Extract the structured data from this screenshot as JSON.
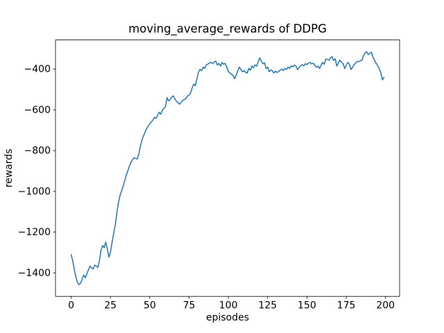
{
  "figure": {
    "background": "#ffffff"
  },
  "chart_data": {
    "type": "line",
    "title": "moving_average_rewards of DDPG",
    "xlabel": "episodes",
    "ylabel": "rewards",
    "series_name": "moving_average_rewards",
    "line_color": "#1f77b4",
    "line_width": 1.5,
    "grid": false,
    "legend": "none",
    "xlim": [
      -9.95,
      208.95
    ],
    "ylim": [
      -1515.2,
      -256.8
    ],
    "x_ticks": [
      0,
      25,
      50,
      75,
      100,
      125,
      150,
      175,
      200
    ],
    "x_tick_labels": [
      "0",
      "25",
      "50",
      "75",
      "100",
      "125",
      "150",
      "175",
      "200"
    ],
    "y_ticks": [
      -400,
      -600,
      -800,
      -1000,
      -1200,
      -1400
    ],
    "y_tick_labels": [
      "−400",
      "−600",
      "−800",
      "−1000",
      "−1200",
      "−1400"
    ],
    "x": "episodes 0..199 (implicit integer index)",
    "values": [
      -1310,
      -1340,
      -1383,
      -1420,
      -1446,
      -1458,
      -1450,
      -1432,
      -1410,
      -1424,
      -1405,
      -1385,
      -1367,
      -1375,
      -1381,
      -1362,
      -1366,
      -1373,
      -1340,
      -1290,
      -1266,
      -1276,
      -1249,
      -1282,
      -1322,
      -1298,
      -1252,
      -1209,
      -1168,
      -1110,
      -1060,
      -1022,
      -1000,
      -976,
      -950,
      -922,
      -900,
      -878,
      -858,
      -845,
      -835,
      -838,
      -841,
      -820,
      -780,
      -748,
      -728,
      -710,
      -692,
      -680,
      -668,
      -660,
      -650,
      -636,
      -642,
      -627,
      -612,
      -621,
      -601,
      -593,
      -585,
      -540,
      -556,
      -548,
      -538,
      -531,
      -546,
      -558,
      -564,
      -572,
      -563,
      -553,
      -549,
      -544,
      -532,
      -527,
      -517,
      -492,
      -473,
      -481,
      -447,
      -415,
      -401,
      -408,
      -390,
      -396,
      -379,
      -375,
      -370,
      -367,
      -373,
      -365,
      -361,
      -380,
      -372,
      -385,
      -367,
      -376,
      -372,
      -391,
      -412,
      -418,
      -426,
      -430,
      -447,
      -430,
      -407,
      -390,
      -401,
      -413,
      -407,
      -416,
      -419,
      -396,
      -406,
      -384,
      -393,
      -379,
      -385,
      -364,
      -345,
      -361,
      -374,
      -369,
      -397,
      -390,
      -413,
      -404,
      -408,
      -419,
      -410,
      -416,
      -412,
      -404,
      -400,
      -407,
      -396,
      -401,
      -390,
      -396,
      -384,
      -389,
      -380,
      -385,
      -402,
      -391,
      -384,
      -378,
      -384,
      -373,
      -378,
      -370,
      -367,
      -374,
      -371,
      -381,
      -391,
      -385,
      -397,
      -381,
      -367,
      -376,
      -351,
      -352,
      -356,
      -345,
      -339,
      -357,
      -350,
      -385,
      -370,
      -356,
      -366,
      -373,
      -397,
      -379,
      -367,
      -376,
      -402,
      -392,
      -379,
      -370,
      -362,
      -363,
      -359,
      -356,
      -334,
      -320,
      -314,
      -329,
      -322,
      -317,
      -341,
      -357,
      -371,
      -382,
      -397,
      -417,
      -453,
      -440
    ]
  }
}
